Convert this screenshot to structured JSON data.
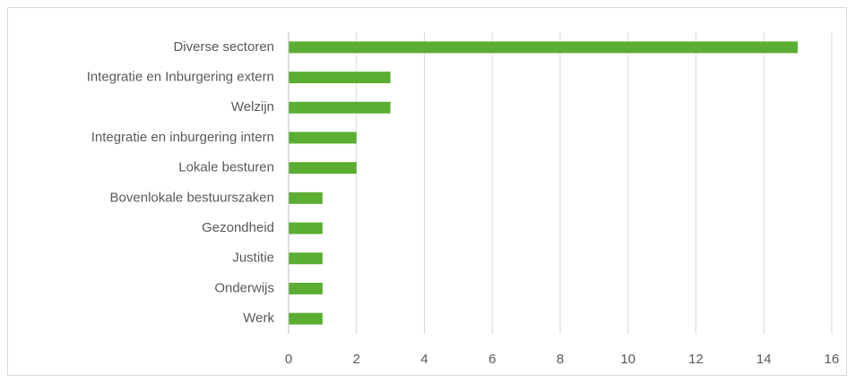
{
  "chart_data": {
    "type": "hbar",
    "categories": [
      "Diverse sectoren",
      "Integratie en Inburgering extern",
      "Welzijn",
      "Integratie en inburgering intern",
      "Lokale besturen",
      "Bovenlokale bestuurszaken",
      "Gezondheid",
      "Justitie",
      "Onderwijs",
      "Werk"
    ],
    "values": [
      15,
      3,
      3,
      2,
      2,
      1,
      1,
      1,
      1,
      1
    ],
    "color": "#5aae32",
    "xlim": [
      0,
      16
    ],
    "xticks": [
      0,
      2,
      4,
      6,
      8,
      10,
      12,
      14,
      16
    ],
    "grid": true
  }
}
